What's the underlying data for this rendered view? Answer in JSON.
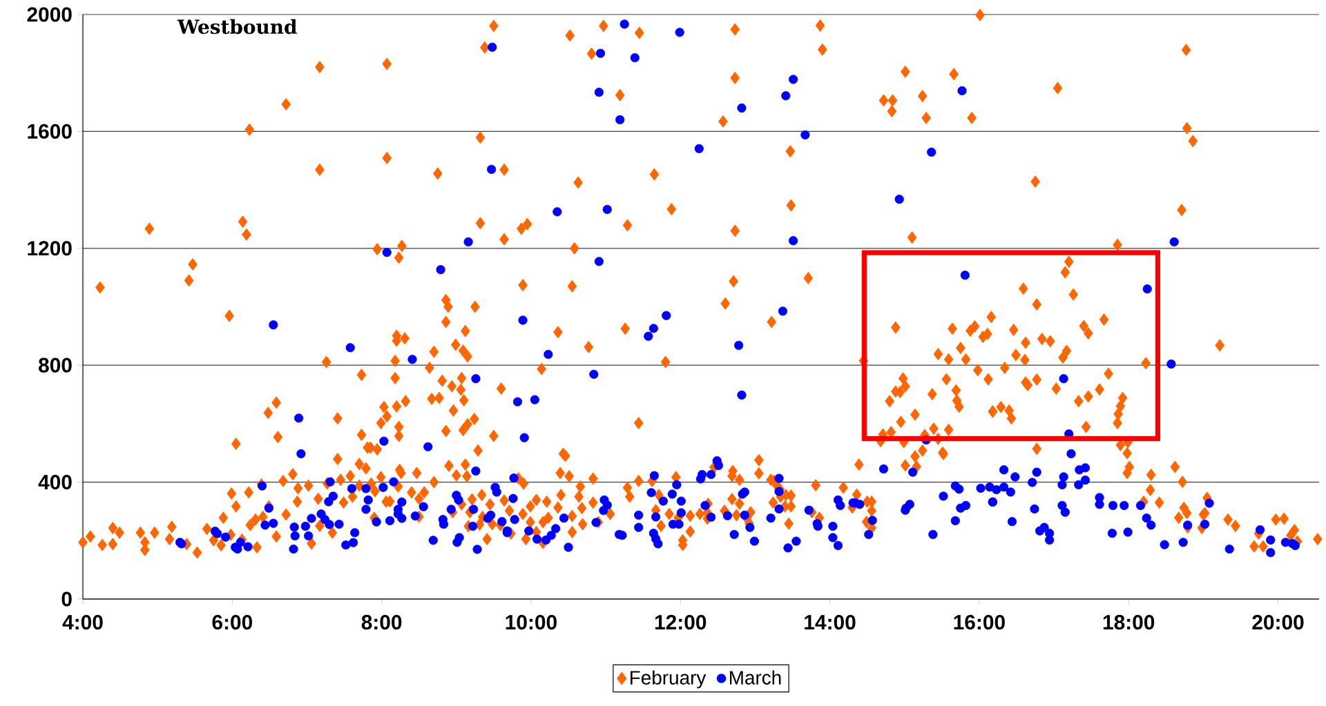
{
  "chart_data": {
    "type": "scatter",
    "title": "Westbound",
    "xlim": [
      4,
      20.55
    ],
    "ylim": [
      0,
      2000
    ],
    "xticks": [
      {
        "value": 4,
        "label": "4:00"
      },
      {
        "value": 6,
        "label": "6:00"
      },
      {
        "value": 8,
        "label": "8:00"
      },
      {
        "value": 10,
        "label": "10:00"
      },
      {
        "value": 12,
        "label": "12:00"
      },
      {
        "value": 14,
        "label": "14:00"
      },
      {
        "value": 16,
        "label": "16:00"
      },
      {
        "value": 18,
        "label": "18:00"
      },
      {
        "value": 20,
        "label": "20:00"
      }
    ],
    "yticks": [
      0,
      400,
      800,
      1200,
      1600,
      2000
    ],
    "grid": "y",
    "legend": "bottom",
    "series": [
      {
        "name": "February",
        "color": "#ff6600",
        "marker": "diamond",
        "x": [
          7.17,
          8.07,
          6.72,
          6.23,
          7.17,
          8.07,
          6.14,
          6.19,
          4.89,
          5.47,
          5.42,
          4.23,
          7.94,
          5.96,
          7.26,
          7.73,
          6.59,
          6.48,
          6.61,
          6.05,
          7.41,
          7.73,
          7.81,
          7.94,
          7.99,
          8.03,
          6.81,
          6.68,
          6.39,
          6.22,
          5.99,
          6.05,
          5.88,
          5.66,
          5.53,
          5.19,
          5.16,
          4.96,
          4.77,
          4.83,
          4.83,
          4.49,
          4.4,
          4.26,
          4.1,
          4.0,
          4.4,
          5.39,
          5.75,
          5.85,
          5.98,
          6.13,
          6.33,
          6.24,
          6.31,
          6.41,
          6.49,
          6.59,
          6.72,
          6.87,
          6.88,
          7.02,
          7.06,
          7.17,
          7.15,
          7.27,
          7.34,
          7.41,
          7.45,
          7.49,
          7.58,
          7.61,
          7.7,
          7.7,
          7.79,
          7.86,
          7.91,
          7.9,
          7.99,
          8.06,
          7.85,
          9.5,
          9.38,
          10.52,
          10.97,
          10.81,
          11.45,
          11.19,
          9.32,
          8.75,
          9.64,
          10.63,
          11.65,
          11.88,
          9.32,
          9.87,
          9.95,
          9.64,
          11.29,
          10.58,
          8.27,
          8.23,
          9.89,
          10.55,
          8.86,
          8.89,
          9.25,
          8.86,
          9.12,
          10.36,
          11.26,
          8.2,
          8.2,
          8.31,
          8.99,
          9.09,
          9.15,
          8.7,
          8.18,
          10.77,
          11.8,
          8.64,
          10.14,
          8.18,
          8.81,
          8.94,
          9.06,
          9.07,
          9.6,
          8.67,
          8.77,
          9.1,
          8.32,
          8.2,
          8.07,
          8.96,
          9.24,
          9.15,
          9.09,
          8.86,
          8.23,
          8.23,
          9.5,
          11.44,
          9.29,
          10.43,
          10.46,
          8.9,
          9.12,
          8.24,
          8.26,
          8.47,
          9.0,
          9.14,
          8.7,
          8.22,
          10.39,
          10.51,
          10.83,
          10.66,
          9.83,
          9.9,
          11.94,
          11.44,
          11.62,
          11.29,
          8.4,
          8.57,
          9.34,
          8.11,
          8.5,
          9.21,
          9.64,
          10.07,
          10.21,
          10.4,
          10.64,
          10.83,
          11.32,
          11.71,
          9.07,
          9.45,
          9.99,
          10.36,
          10.68,
          11.67,
          11.85,
          8.5,
          8.95,
          9.18,
          9.35,
          9.71,
          9.89,
          10.23,
          10.55,
          11.06,
          11.97,
          9.48,
          9.59,
          9.99,
          10.16,
          10.69,
          10.9,
          11.74,
          9.16,
          9.31,
          9.73,
          9.93,
          10.07,
          10.16,
          10.55,
          9.41,
          12.03,
          12.03,
          12.73,
          13.87,
          13.9,
          12.73,
          15.01,
          14.72,
          14.84,
          14.83,
          15.24,
          15.29,
          15.66,
          15.9,
          16.01,
          12.57,
          13.47,
          13.48,
          12.73,
          15.1,
          12.71,
          12.6,
          13.71,
          13.22,
          14.45,
          14.88,
          15.64,
          15.88,
          15.94,
          16.05,
          16.11,
          16.16,
          15.45,
          15.59,
          15.75,
          15.82,
          15.98,
          16.12,
          14.98,
          14.88,
          14.94,
          15.01,
          14.8,
          15.37,
          15.56,
          15.69,
          15.7,
          15.73,
          16.18,
          15.14,
          14.95,
          14.71,
          14.82,
          14.68,
          14.99,
          15.27,
          15.39,
          15.59,
          15.45,
          15.24,
          15.14,
          15.01,
          15.16,
          15.51,
          15.52,
          14.39,
          13.05,
          13.05,
          12.7,
          12.69,
          12.79,
          12.45,
          13.81,
          14.18,
          14.36,
          14.5,
          14.56,
          14.56,
          14.3,
          14.49,
          14.56,
          13.86,
          13.76,
          13.21,
          13.25,
          13.28,
          13.33,
          13.34,
          13.41,
          13.48,
          13.24,
          13.4,
          13.48,
          13.45,
          12.69,
          12.79,
          12.59,
          12.75,
          12.94,
          12.89,
          12.92,
          12.37,
          12.26,
          12.13,
          12.36,
          12.36,
          12.13,
          18.77,
          17.05,
          18.78,
          18.86,
          16.75,
          18.71,
          17.85,
          17.2,
          17.15,
          17.26,
          16.59,
          16.77,
          16.46,
          16.62,
          16.84,
          16.95,
          16.49,
          16.61,
          17.12,
          17.17,
          17.4,
          17.46,
          17.67,
          16.34,
          16.62,
          16.65,
          16.77,
          17.03,
          17.33,
          17.46,
          17.61,
          17.73,
          18.23,
          17.92,
          17.89,
          17.86,
          17.85,
          17.43,
          16.29,
          16.4,
          16.43,
          16.18,
          16.77,
          17.89,
          17.99,
          17.98,
          18.01,
          17.98,
          18.3,
          18.62,
          18.72,
          18.29,
          18.41,
          18.2,
          19.05,
          18.67,
          18.74,
          18.78,
          18.79,
          18.98,
          19.0,
          19.02,
          19.22,
          19.33,
          19.43,
          19.68,
          19.74,
          19.8,
          19.97,
          20.08,
          20.17,
          20.22,
          20.26,
          20.53
        ],
        "values": [
          1820,
          1831,
          1693,
          1606,
          1469,
          1509,
          1291,
          1247,
          1267,
          1145,
          1090,
          1066,
          1197,
          969,
          811,
          767,
          672,
          637,
          554,
          531,
          618,
          562,
          518,
          512,
          602,
          657,
          427,
          404,
          392,
          365,
          361,
          317,
          278,
          240,
          159,
          247,
          205,
          227,
          227,
          168,
          194,
          227,
          243,
          185,
          214,
          194,
          188,
          188,
          201,
          184,
          220,
          203,
          177,
          253,
          272,
          281,
          317,
          214,
          289,
          333,
          379,
          388,
          190,
          250,
          343,
          395,
          227,
          479,
          408,
          330,
          421,
          350,
          462,
          388,
          447,
          395,
          369,
          278,
          417,
          333,
          518,
          1961,
          1887,
          1928,
          1961,
          1866,
          1937,
          1724,
          1579,
          1456,
          1469,
          1425,
          1453,
          1334,
          1286,
          1267,
          1283,
          1231,
          1279,
          1200,
          1208,
          1168,
          1074,
          1070,
          1023,
          1000,
          1000,
          948,
          917,
          913,
          925,
          901,
          884,
          892,
          870,
          850,
          830,
          846,
          815,
          862,
          811,
          791,
          787,
          756,
          747,
          728,
          716,
          756,
          720,
          685,
          688,
          680,
          677,
          659,
          625,
          645,
          616,
          598,
          578,
          575,
          589,
          558,
          558,
          602,
          508,
          497,
          490,
          456,
          460,
          442,
          431,
          431,
          423,
          420,
          400,
          385,
          431,
          420,
          412,
          385,
          413,
          395,
          417,
          404,
          404,
          381,
          365,
          365,
          356,
          334,
          343,
          341,
          337,
          339,
          333,
          356,
          350,
          330,
          350,
          356,
          324,
          324,
          317,
          313,
          311,
          304,
          291,
          282,
          297,
          297,
          281,
          302,
          291,
          278,
          284,
          291,
          278,
          256,
          253,
          263,
          263,
          256,
          263,
          250,
          249,
          255,
          224,
          205,
          229,
          192,
          229,
          205,
          185,
          201,
          1949,
          1962,
          1880,
          1783,
          1804,
          1706,
          1706,
          1669,
          1721,
          1646,
          1796,
          1646,
          1998,
          1634,
          1532,
          1347,
          1260,
          1237,
          1087,
          1011,
          1098,
          948,
          815,
          929,
          925,
          918,
          933,
          897,
          907,
          965,
          838,
          820,
          859,
          820,
          783,
          752,
          755,
          710,
          708,
          728,
          677,
          701,
          752,
          714,
          679,
          658,
          642,
          631,
          606,
          563,
          571,
          540,
          537,
          561,
          583,
          579,
          548,
          508,
          488,
          457,
          453,
          501,
          496,
          460,
          475,
          430,
          438,
          421,
          408,
          451,
          389,
          381,
          357,
          333,
          333,
          302,
          313,
          264,
          243,
          278,
          297,
          408,
          404,
          392,
          376,
          350,
          356,
          354,
          330,
          317,
          317,
          258,
          342,
          326,
          302,
          287,
          297,
          276,
          259,
          326,
          291,
          285,
          295,
          275,
          231,
          1879,
          1748,
          1611,
          1567,
          1428,
          1331,
          1212,
          1154,
          1118,
          1042,
          1062,
          1008,
          921,
          877,
          890,
          882,
          835,
          818,
          826,
          849,
          934,
          909,
          956,
          791,
          741,
          732,
          751,
          720,
          677,
          693,
          717,
          771,
          807,
          688,
          660,
          633,
          602,
          589,
          657,
          645,
          618,
          641,
          514,
          527,
          537,
          499,
          452,
          431,
          425,
          452,
          401,
          373,
          330,
          333,
          346,
          278,
          312,
          294,
          245,
          243,
          289,
          294,
          868,
          272,
          250,
          180,
          224,
          180,
          272,
          275,
          218,
          236,
          197,
          205
        ]
      },
      {
        "name": "March",
        "color": "#0000ff",
        "marker": "circle",
        "x": [
          6.55,
          7.58,
          6.89,
          6.92,
          6.4,
          6.49,
          6.55,
          6.44,
          5.91,
          5.77,
          5.8,
          5.3,
          5.32,
          6.04,
          6.07,
          6.11,
          6.21,
          6.82,
          6.84,
          6.83,
          6.98,
          7.02,
          7.06,
          7.19,
          7.24,
          7.31,
          7.29,
          7.35,
          7.3,
          7.43,
          7.52,
          7.62,
          7.64,
          7.6,
          7.79,
          7.82,
          7.79,
          7.93,
          8.02,
          8.03,
          8.07,
          11.25,
          11.99,
          9.48,
          10.93,
          11.39,
          10.91,
          11.19,
          9.47,
          10.35,
          11.02,
          9.16,
          10.91,
          8.79,
          9.89,
          11.81,
          11.64,
          11.57,
          8.41,
          10.23,
          9.26,
          10.84,
          9.82,
          10.05,
          9.91,
          8.62,
          9.26,
          9.77,
          11.65,
          11.95,
          8.16,
          8.27,
          8.56,
          8.22,
          8.22,
          8.27,
          8.45,
          8.11,
          9.0,
          9.03,
          8.93,
          9.23,
          9.52,
          9.54,
          9.76,
          9.42,
          9.46,
          9.61,
          9.68,
          9.68,
          9.78,
          9.22,
          8.82,
          8.83,
          8.69,
          9.01,
          9.04,
          9.28,
          9.97,
          10.08,
          10.2,
          10.27,
          10.33,
          10.44,
          10.5,
          10.87,
          10.98,
          11.02,
          10.97,
          11.18,
          11.22,
          11.44,
          11.44,
          11.61,
          11.67,
          11.77,
          11.89,
          12.01,
          12.01,
          11.64,
          11.67,
          11.7,
          11.9,
          11.98,
          12.82,
          13.41,
          13.51,
          15.77,
          12.25,
          13.67,
          15.36,
          14.93,
          13.51,
          13.37,
          12.78,
          12.82,
          15.81,
          12.49,
          12.51,
          12.29,
          12.27,
          12.41,
          12.33,
          12.41,
          12.63,
          12.72,
          12.83,
          12.86,
          12.86,
          12.93,
          12.99,
          13.21,
          13.32,
          13.32,
          13.32,
          13.44,
          13.55,
          13.72,
          13.83,
          13.84,
          14.04,
          14.04,
          14.11,
          14.11,
          14.14,
          14.31,
          14.34,
          14.4,
          14.52,
          14.57,
          14.72,
          15.01,
          15.02,
          15.07,
          15.11,
          15.38,
          15.29,
          15.52,
          15.68,
          15.73,
          15.68,
          15.75,
          15.82,
          16.02,
          16.14,
          16.18,
          18.61,
          18.25,
          18.57,
          17.13,
          17.2,
          17.23,
          16.33,
          16.48,
          16.77,
          16.71,
          16.23,
          16.33,
          16.42,
          16.18,
          16.44,
          16.74,
          16.81,
          16.87,
          16.94,
          16.94,
          17.11,
          17.13,
          17.34,
          17.42,
          17.42,
          17.33,
          17.11,
          17.15,
          17.61,
          17.61,
          17.79,
          17.94,
          17.78,
          17.99,
          18.16,
          18.24,
          18.3,
          18.48,
          18.73,
          18.79,
          19.02,
          19.08,
          19.35,
          19.76,
          19.9,
          19.9,
          20.1,
          20.19,
          20.23
        ],
        "values": [
          938,
          860,
          619,
          497,
          387,
          311,
          259,
          253,
          212,
          232,
          224,
          194,
          189,
          177,
          171,
          194,
          179,
          171,
          216,
          246,
          249,
          216,
          276,
          291,
          272,
          401,
          333,
          352,
          255,
          256,
          185,
          193,
          227,
          378,
          378,
          339,
          307,
          264,
          382,
          540,
          1186,
          1967,
          1939,
          1888,
          1867,
          1852,
          1734,
          1640,
          1470,
          1325,
          1333,
          1222,
          1155,
          1127,
          954,
          970,
          926,
          899,
          820,
          837,
          754,
          769,
          675,
          682,
          552,
          521,
          438,
          414,
          422,
          391,
          401,
          332,
          316,
          307,
          291,
          276,
          284,
          268,
          355,
          339,
          307,
          307,
          382,
          366,
          344,
          276,
          287,
          265,
          233,
          227,
          272,
          249,
          272,
          256,
          201,
          194,
          210,
          170,
          233,
          205,
          202,
          218,
          241,
          277,
          177,
          262,
          339,
          321,
          303,
          221,
          218,
          287,
          245,
          364,
          281,
          335,
          359,
          335,
          295,
          225,
          206,
          189,
          256,
          256,
          1680,
          1722,
          1778,
          1739,
          1541,
          1588,
          1529,
          1368,
          1226,
          985,
          868,
          698,
          1108,
          473,
          457,
          426,
          411,
          426,
          320,
          280,
          285,
          221,
          359,
          366,
          287,
          245,
          198,
          277,
          413,
          368,
          308,
          175,
          198,
          304,
          258,
          249,
          249,
          210,
          183,
          339,
          320,
          329,
          329,
          324,
          221,
          269,
          445,
          304,
          311,
          324,
          434,
          221,
          544,
          352,
          387,
          376,
          268,
          311,
          320,
          379,
          383,
          332,
          1222,
          1061,
          804,
          754,
          565,
          497,
          442,
          418,
          434,
          399,
          374,
          383,
          366,
          332,
          265,
          308,
          233,
          245,
          225,
          202,
          391,
          418,
          442,
          449,
          407,
          391,
          320,
          297,
          347,
          324,
          320,
          320,
          225,
          229,
          320,
          277,
          253,
          186,
          194,
          253,
          256,
          328,
          171,
          237,
          202,
          159,
          194,
          190,
          183
        ]
      }
    ]
  }
}
